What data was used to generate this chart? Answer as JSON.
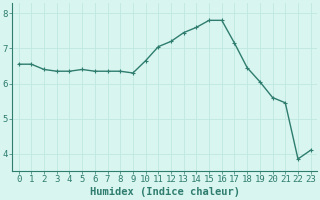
{
  "x": [
    0,
    1,
    2,
    3,
    4,
    5,
    6,
    7,
    8,
    9,
    10,
    11,
    12,
    13,
    14,
    15,
    16,
    17,
    18,
    19,
    20,
    21,
    22,
    23
  ],
  "y": [
    6.55,
    6.55,
    6.4,
    6.35,
    6.35,
    6.4,
    6.35,
    6.35,
    6.35,
    6.3,
    6.65,
    7.05,
    7.2,
    7.45,
    7.6,
    7.8,
    7.8,
    7.15,
    6.45,
    6.05,
    5.6,
    5.45,
    3.85,
    4.1
  ],
  "line_color": "#2e7d6e",
  "marker": "+",
  "marker_size": 3,
  "bg_color": "#d8f5f0",
  "grid_color": "#c0e8e0",
  "xlabel": "Humidex (Indice chaleur)",
  "xlim": [
    -0.5,
    23.5
  ],
  "ylim": [
    3.5,
    8.3
  ],
  "yticks": [
    4,
    5,
    6,
    7,
    8
  ],
  "xticks": [
    0,
    1,
    2,
    3,
    4,
    5,
    6,
    7,
    8,
    9,
    10,
    11,
    12,
    13,
    14,
    15,
    16,
    17,
    18,
    19,
    20,
    21,
    22,
    23
  ],
  "tick_label_fontsize": 6.5,
  "xlabel_fontsize": 7.5,
  "line_width": 1.0,
  "axis_color": "#2e7d6e",
  "spine_color": "#2e7d6e"
}
